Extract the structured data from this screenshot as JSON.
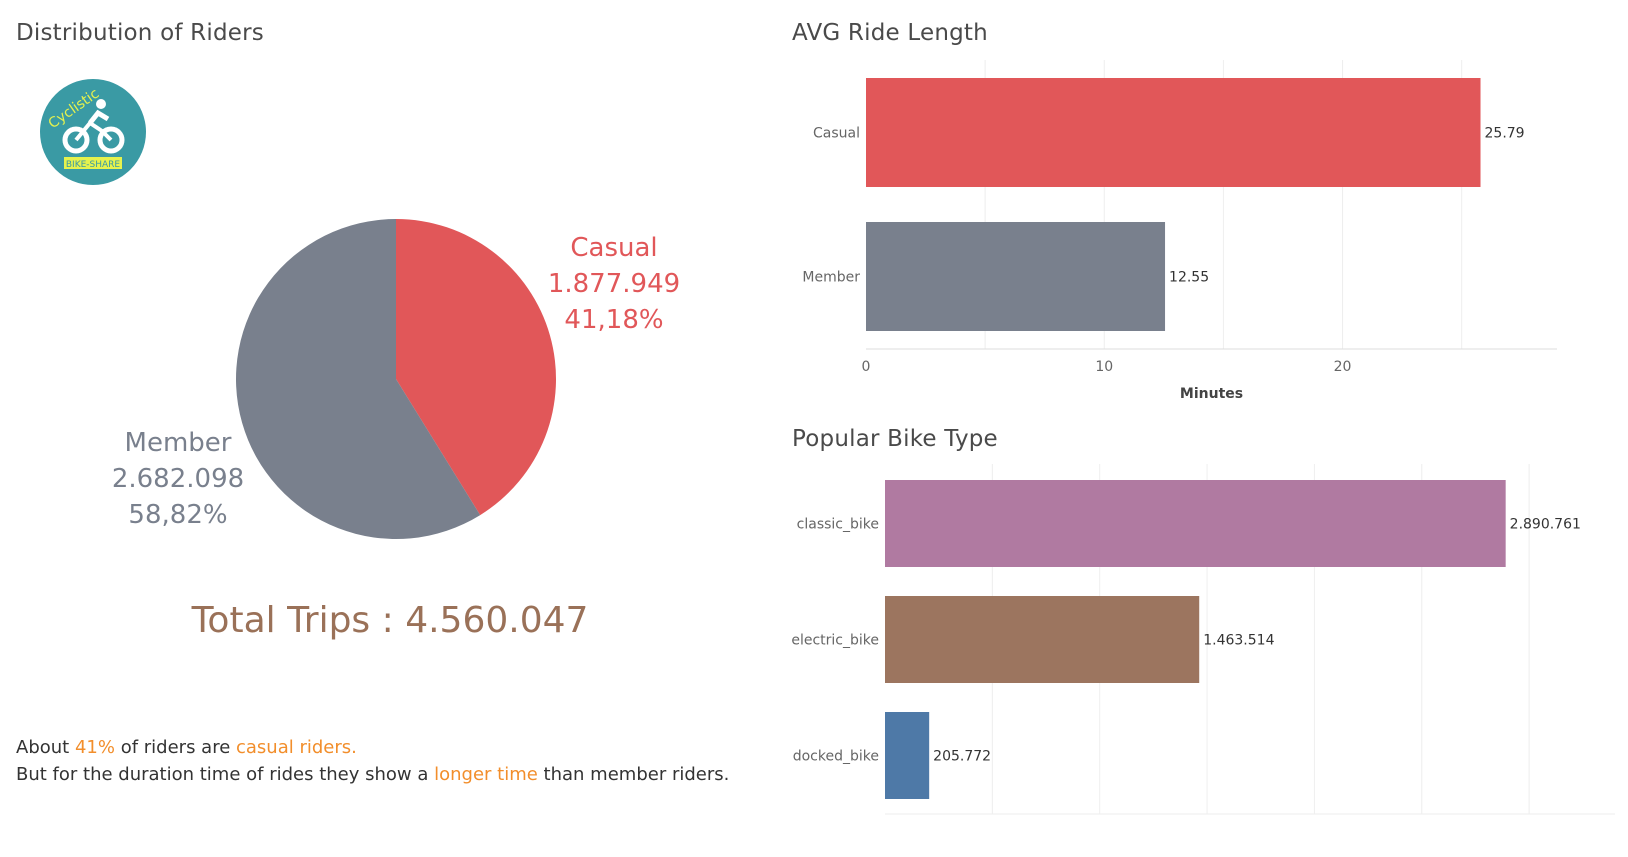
{
  "titles": {
    "left": "Distribution of Riders",
    "avg": "AVG Ride Length",
    "bike": "Popular Bike Type"
  },
  "logo": {
    "text_top": "Cyclistic",
    "text_bottom": "BIKE-SHARE",
    "icon": "cyclist-icon",
    "bg_color": "#3a9aa4",
    "band_color": "#e6f24d"
  },
  "total": {
    "label": "Total Trips : 4.560.047"
  },
  "summary": {
    "line1_pre": "About ",
    "line1_pct": "41%",
    "line1_mid": " of riders are ",
    "line1_hl": "casual riders.",
    "line2_pre": "But for the duration time of rides they show a ",
    "line2_hl": "longer time",
    "line2_post": " than member riders."
  },
  "chart_data": [
    {
      "type": "pie",
      "slices": [
        {
          "name": "Casual",
          "value": 1877949,
          "value_label": "1.877.949",
          "percent_label": "41,18%",
          "color": "#e15759"
        },
        {
          "name": "Member",
          "value": 2682098,
          "value_label": "2.682.098",
          "percent_label": "58,82%",
          "color": "#79808d"
        }
      ]
    },
    {
      "type": "bar",
      "orientation": "horizontal",
      "categories": [
        "Casual",
        "Member"
      ],
      "values": [
        25.79,
        12.55
      ],
      "value_labels": [
        "25.79",
        "12.55"
      ],
      "colors": [
        "#e15759",
        "#79808d"
      ],
      "xlabel": "Minutes",
      "xticks": [
        0,
        10,
        20
      ],
      "xlim": [
        0,
        29
      ]
    },
    {
      "type": "bar",
      "orientation": "horizontal",
      "categories": [
        "classic_bike",
        "electric_bike",
        "docked_bike"
      ],
      "values": [
        2890761,
        1463514,
        205772
      ],
      "value_labels": [
        "2.890.761",
        "1.463.514",
        "205.772"
      ],
      "colors": [
        "#b07aa1",
        "#9c755f",
        "#4e79a7"
      ],
      "xlim": [
        0,
        3400000
      ],
      "grid_step": 500000
    }
  ]
}
